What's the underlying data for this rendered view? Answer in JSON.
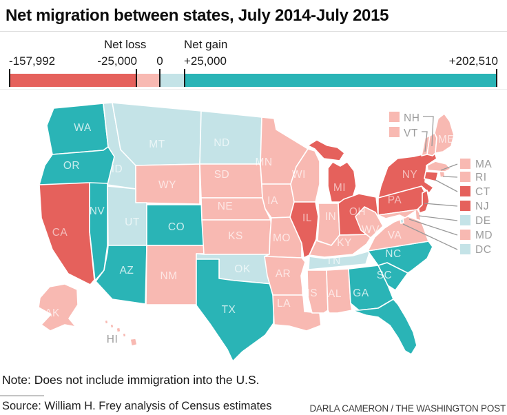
{
  "title": "Net migration between states, July 2014-July 2015",
  "legend": {
    "loss_label": "Net loss",
    "gain_label": "Net gain",
    "min": "-157,992",
    "loss_tick": "-25,000",
    "zero": "0",
    "gain_tick": "+25,000",
    "max": "+202,510"
  },
  "colors": {
    "strong_loss": "#e5615c",
    "loss": "#f8b9b2",
    "gain": "#c4e3e7",
    "strong_gain": "#2ab4b6"
  },
  "footer": {
    "note": "Note: Does not include immigration into the U.S.",
    "source": "Source: William H. Frey analysis of Census estimates",
    "credit": "DARLA CAMERON / THE WASHINGTON POST"
  },
  "map": {
    "hi_label": "HI",
    "states": [
      {
        "abbr": "WA",
        "category": "strong_gain"
      },
      {
        "abbr": "OR",
        "category": "strong_gain"
      },
      {
        "abbr": "CA",
        "category": "strong_loss"
      },
      {
        "abbr": "NV",
        "category": "strong_gain"
      },
      {
        "abbr": "ID",
        "category": "gain"
      },
      {
        "abbr": "MT",
        "category": "gain"
      },
      {
        "abbr": "WY",
        "category": "loss"
      },
      {
        "abbr": "UT",
        "category": "gain"
      },
      {
        "abbr": "CO",
        "category": "strong_gain"
      },
      {
        "abbr": "AZ",
        "category": "strong_gain"
      },
      {
        "abbr": "NM",
        "category": "loss"
      },
      {
        "abbr": "ND",
        "category": "gain"
      },
      {
        "abbr": "SD",
        "category": "loss"
      },
      {
        "abbr": "NE",
        "category": "loss"
      },
      {
        "abbr": "KS",
        "category": "loss"
      },
      {
        "abbr": "OK",
        "category": "gain"
      },
      {
        "abbr": "TX",
        "category": "strong_gain"
      },
      {
        "abbr": "MN",
        "category": "loss"
      },
      {
        "abbr": "IA",
        "category": "loss"
      },
      {
        "abbr": "MO",
        "category": "loss"
      },
      {
        "abbr": "AR",
        "category": "loss"
      },
      {
        "abbr": "LA",
        "category": "loss"
      },
      {
        "abbr": "WI",
        "category": "loss"
      },
      {
        "abbr": "IL",
        "category": "strong_loss"
      },
      {
        "abbr": "IN",
        "category": "loss"
      },
      {
        "abbr": "MI",
        "category": "strong_loss"
      },
      {
        "abbr": "OH",
        "category": "strong_loss"
      },
      {
        "abbr": "KY",
        "category": "loss"
      },
      {
        "abbr": "TN",
        "category": "gain"
      },
      {
        "abbr": "MS",
        "category": "loss"
      },
      {
        "abbr": "AL",
        "category": "loss"
      },
      {
        "abbr": "GA",
        "category": "strong_gain"
      },
      {
        "abbr": "SC",
        "category": "strong_gain"
      },
      {
        "abbr": "NC",
        "category": "strong_gain"
      },
      {
        "abbr": "VA",
        "category": "loss"
      },
      {
        "abbr": "WV",
        "category": "loss"
      },
      {
        "abbr": "PA",
        "category": "strong_loss"
      },
      {
        "abbr": "NY",
        "category": "strong_loss"
      },
      {
        "abbr": "ME",
        "category": "loss"
      },
      {
        "abbr": "FL",
        "category": "strong_gain"
      },
      {
        "abbr": "AK",
        "category": "loss"
      },
      {
        "abbr": "HI",
        "category": "loss"
      },
      {
        "abbr": "VT",
        "category": "loss"
      },
      {
        "abbr": "NH",
        "category": "loss"
      },
      {
        "abbr": "MA",
        "category": "loss"
      },
      {
        "abbr": "RI",
        "category": "loss"
      },
      {
        "abbr": "CT",
        "category": "strong_loss"
      },
      {
        "abbr": "NJ",
        "category": "strong_loss"
      },
      {
        "abbr": "DE",
        "category": "gain"
      },
      {
        "abbr": "MD",
        "category": "loss"
      },
      {
        "abbr": "DC",
        "category": "gain"
      }
    ],
    "callouts": [
      {
        "abbr": "NH",
        "category": "loss"
      },
      {
        "abbr": "VT",
        "category": "loss"
      },
      {
        "abbr": "MA",
        "category": "loss"
      },
      {
        "abbr": "RI",
        "category": "loss"
      },
      {
        "abbr": "CT",
        "category": "strong_loss"
      },
      {
        "abbr": "NJ",
        "category": "strong_loss"
      },
      {
        "abbr": "DE",
        "category": "gain"
      },
      {
        "abbr": "MD",
        "category": "loss"
      },
      {
        "abbr": "DC",
        "category": "gain"
      }
    ]
  },
  "chart_data": {
    "type": "choropleth",
    "title": "Net migration between states, July 2014-July 2015",
    "scale": {
      "min": -157992,
      "loss_threshold": -25000,
      "zero": 0,
      "gain_threshold": 25000,
      "max": 202510
    },
    "legend_categories": {
      "strong_loss": "net loss of 25,000 or more",
      "loss": "net loss between 0 and 25,000",
      "gain": "net gain between 0 and 25,000",
      "strong_gain": "net gain of 25,000 or more"
    },
    "states_by_category": {
      "strong_loss": [
        "CA",
        "MI",
        "IL",
        "OH",
        "NY",
        "PA",
        "NJ",
        "CT"
      ],
      "loss": [
        "WY",
        "SD",
        "NE",
        "KS",
        "NM",
        "MN",
        "IA",
        "WI",
        "MO",
        "AR",
        "LA",
        "IN",
        "KY",
        "MS",
        "AL",
        "WV",
        "VA",
        "ME",
        "NH",
        "VT",
        "MA",
        "RI",
        "MD",
        "AK",
        "HI"
      ],
      "gain": [
        "ID",
        "MT",
        "ND",
        "UT",
        "OK",
        "TN",
        "DE",
        "DC"
      ],
      "strong_gain": [
        "WA",
        "OR",
        "NV",
        "AZ",
        "CO",
        "TX",
        "NC",
        "SC",
        "GA",
        "FL"
      ]
    }
  }
}
